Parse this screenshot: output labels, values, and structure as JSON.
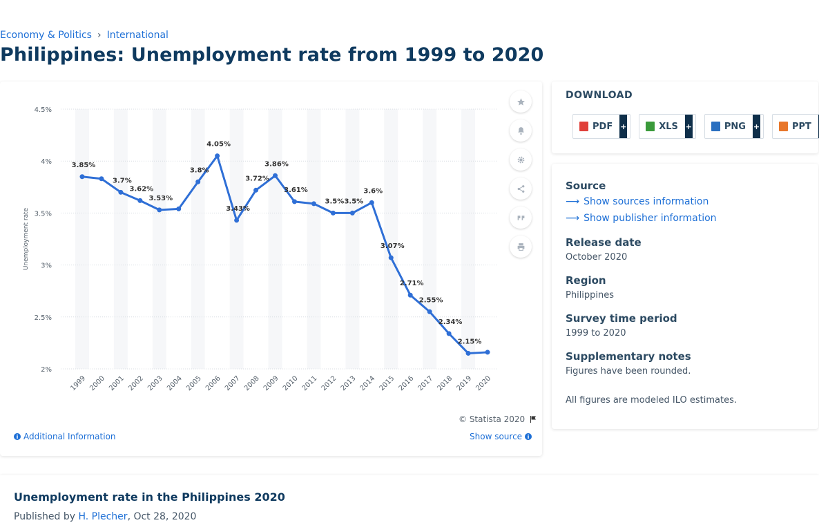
{
  "breadcrumb": {
    "item1": "Economy & Politics",
    "item2": "International",
    "separator": "›"
  },
  "page_title": "Philippines: Unemployment rate from 1999 to 2020",
  "chart_footer": {
    "copyright": "© Statista 2020",
    "additional_info": "Additional Information",
    "show_source": "Show source"
  },
  "download": {
    "title": "DOWNLOAD",
    "buttons": [
      {
        "label": "PDF",
        "color": "#e0403a"
      },
      {
        "label": "XLS",
        "color": "#3a9a3a"
      },
      {
        "label": "PNG",
        "color": "#2a6fc0"
      },
      {
        "label": "PPT",
        "color": "#e8762a"
      }
    ],
    "plus": "+"
  },
  "info": {
    "source_label": "Source",
    "show_sources": "Show sources information",
    "show_publisher": "Show publisher information",
    "release_label": "Release date",
    "release_value": "October 2020",
    "region_label": "Region",
    "region_value": "Philippines",
    "period_label": "Survey time period",
    "period_value": "1999 to 2020",
    "notes_label": "Supplementary notes",
    "notes_value": "Figures have been rounded.",
    "notes_extra": "All figures are modeled ILO estimates."
  },
  "bottom": {
    "title": "Unemployment rate in the Philippines 2020",
    "published_by": "Published by",
    "author": "H. Plecher",
    "date": ", Oct 28, 2020"
  },
  "chart_data": {
    "type": "line",
    "title": "",
    "xlabel": "",
    "ylabel": "Unemployment rate",
    "categories": [
      "1999",
      "2000",
      "2001",
      "2002",
      "2003",
      "2004",
      "2005",
      "2006",
      "2007",
      "2008",
      "2009",
      "2010",
      "2011",
      "2012",
      "2013",
      "2014",
      "2015",
      "2016",
      "2017",
      "2018",
      "2019",
      "2020"
    ],
    "values": [
      3.85,
      3.83,
      3.7,
      3.62,
      3.53,
      3.54,
      3.8,
      4.05,
      3.43,
      3.72,
      3.86,
      3.61,
      3.59,
      3.5,
      3.5,
      3.6,
      3.07,
      2.71,
      2.55,
      2.34,
      2.15,
      2.16
    ],
    "data_labels": [
      "3.85%",
      "",
      "3.7%",
      "3.62%",
      "3.53%",
      "",
      "3.8%",
      "4.05%",
      "3.43%",
      "3.72%",
      "3.86%",
      "3.61%",
      "",
      "3.5%",
      "3.5%",
      "3.6%",
      "3.07%",
      "2.71%",
      "2.55%",
      "2.34%",
      "2.15%",
      ""
    ],
    "yticks": [
      "2%",
      "2.5%",
      "3%",
      "3.5%",
      "4%",
      "4.5%"
    ],
    "ytick_values": [
      2,
      2.5,
      3,
      3.5,
      4,
      4.5
    ],
    "ylim": [
      2,
      4.5
    ],
    "grid": true,
    "line_color": "#2f6fd6"
  }
}
